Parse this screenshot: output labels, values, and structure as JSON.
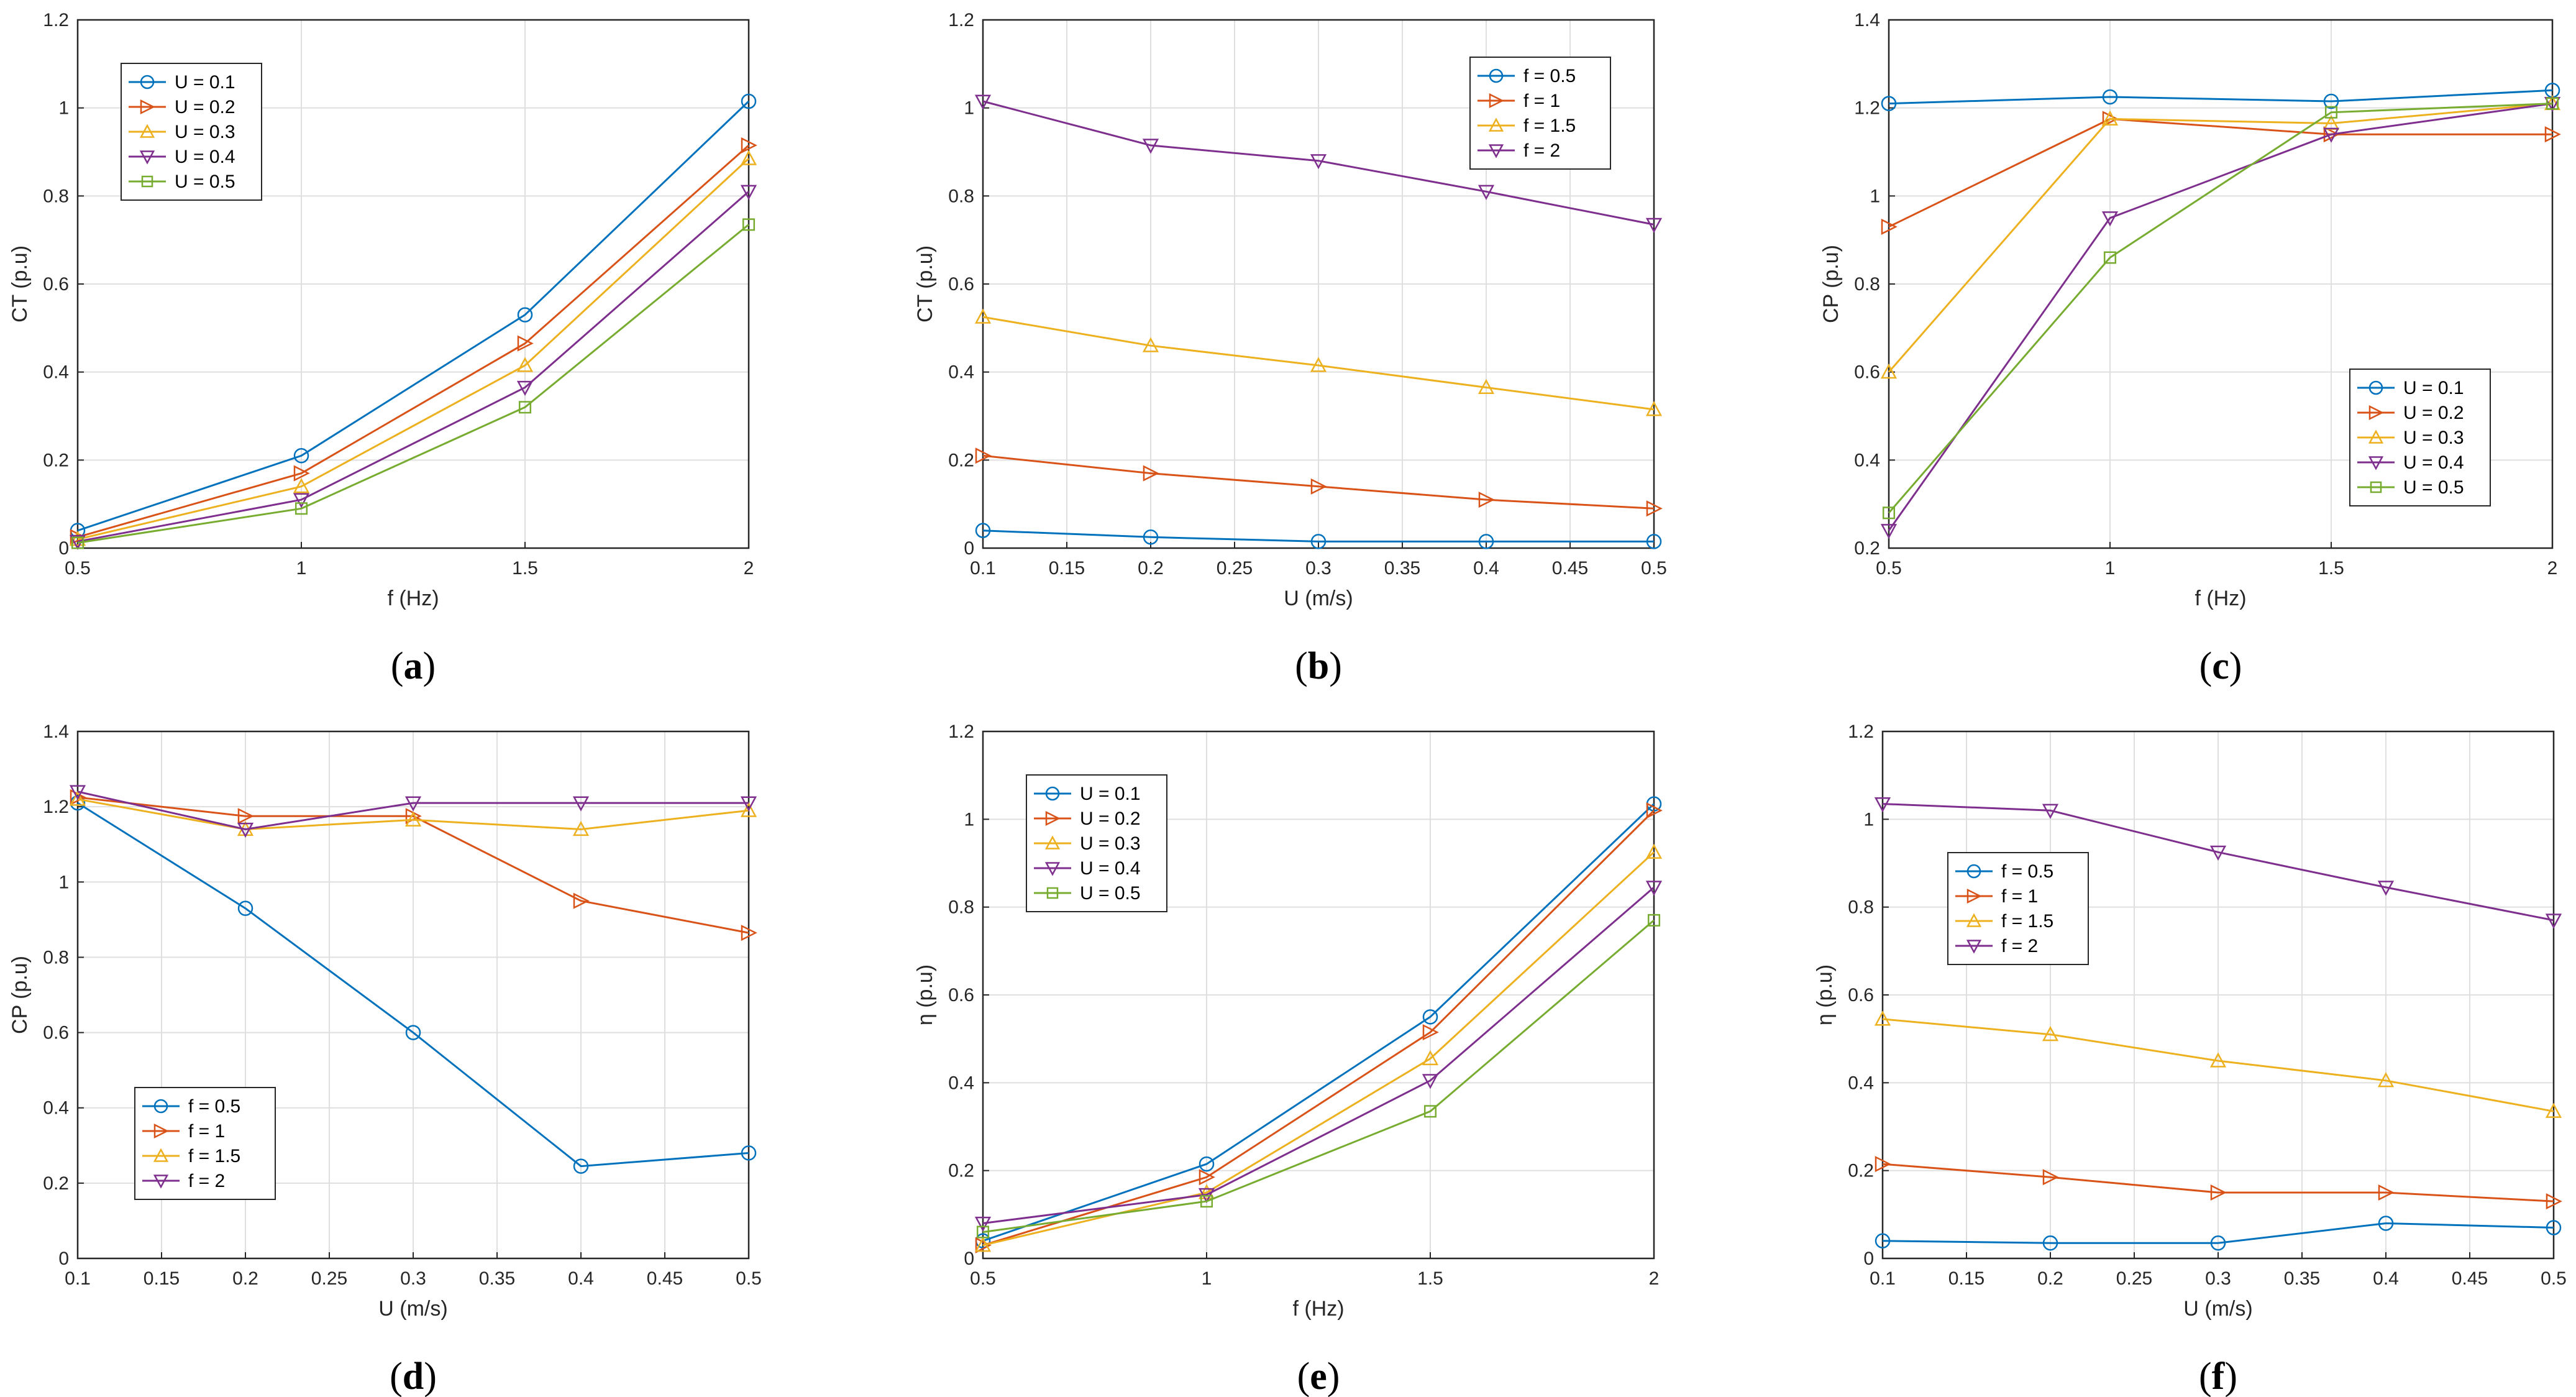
{
  "colors": {
    "series": [
      "#0072BD",
      "#D95319",
      "#EDB120",
      "#7E2F8E",
      "#77AC30"
    ],
    "grid": "#dfdfdf",
    "axis": "#262626"
  },
  "chart_data": [
    {
      "panel": "a",
      "caption_letter": "a",
      "type": "line",
      "xlabel": "f (Hz)",
      "ylabel": "CT (p.u)",
      "xlim": [
        0.5,
        2
      ],
      "ylim": [
        0,
        1.2
      ],
      "xticks": [
        "0.5",
        "1",
        "1.5",
        "2"
      ],
      "yticks": [
        "0",
        "0.2",
        "0.4",
        "0.6",
        "0.8",
        "1",
        "1.2"
      ],
      "x": [
        0.5,
        1,
        1.5,
        2
      ],
      "legend_position": "top-left",
      "series": [
        {
          "name": "U = 0.1",
          "marker": "circle",
          "values": [
            0.04,
            0.21,
            0.53,
            1.015
          ]
        },
        {
          "name": "U = 0.2",
          "marker": "triangle-right",
          "values": [
            0.025,
            0.17,
            0.465,
            0.915
          ]
        },
        {
          "name": "U = 0.3",
          "marker": "triangle-up",
          "values": [
            0.02,
            0.14,
            0.415,
            0.885
          ]
        },
        {
          "name": "U = 0.4",
          "marker": "triangle-down",
          "values": [
            0.015,
            0.11,
            0.365,
            0.81
          ]
        },
        {
          "name": "U = 0.5",
          "marker": "square",
          "values": [
            0.012,
            0.09,
            0.32,
            0.735
          ]
        }
      ]
    },
    {
      "panel": "b",
      "caption_letter": "b",
      "type": "line",
      "xlabel": "U (m/s)",
      "ylabel": "CT (p.u)",
      "xlim": [
        0.1,
        0.5
      ],
      "ylim": [
        0,
        1.2
      ],
      "xticks": [
        "0.1",
        "0.15",
        "0.2",
        "0.25",
        "0.3",
        "0.35",
        "0.4",
        "0.45",
        "0.5"
      ],
      "yticks": [
        "0",
        "0.2",
        "0.4",
        "0.6",
        "0.8",
        "1",
        "1.2"
      ],
      "x": [
        0.1,
        0.2,
        0.3,
        0.4,
        0.5
      ],
      "legend_position": "top-right",
      "series": [
        {
          "name": "f = 0.5",
          "marker": "circle",
          "values": [
            0.04,
            0.025,
            0.015,
            0.015,
            0.015
          ]
        },
        {
          "name": "f = 1",
          "marker": "triangle-right",
          "values": [
            0.21,
            0.17,
            0.14,
            0.11,
            0.09
          ]
        },
        {
          "name": "f = 1.5",
          "marker": "triangle-up",
          "values": [
            0.525,
            0.46,
            0.415,
            0.365,
            0.315
          ]
        },
        {
          "name": "f = 2",
          "marker": "triangle-down",
          "values": [
            1.015,
            0.915,
            0.88,
            0.81,
            0.735
          ]
        }
      ]
    },
    {
      "panel": "c",
      "caption_letter": "c",
      "type": "line",
      "xlabel": "f (Hz)",
      "ylabel": "CP (p.u)",
      "xlim": [
        0.5,
        2
      ],
      "ylim": [
        0.2,
        1.4
      ],
      "xticks": [
        "0.5",
        "1",
        "1.5",
        "2"
      ],
      "yticks": [
        "0.2",
        "0.4",
        "0.6",
        "0.8",
        "1",
        "1.2",
        "1.4"
      ],
      "x": [
        0.5,
        1,
        1.5,
        2
      ],
      "legend_position": "bottom-right",
      "series": [
        {
          "name": "U = 0.1",
          "marker": "circle",
          "values": [
            1.21,
            1.225,
            1.215,
            1.24
          ]
        },
        {
          "name": "U = 0.2",
          "marker": "triangle-right",
          "values": [
            0.93,
            1.175,
            1.14,
            1.14
          ]
        },
        {
          "name": "U = 0.3",
          "marker": "triangle-up",
          "values": [
            0.6,
            1.175,
            1.165,
            1.21
          ]
        },
        {
          "name": "U = 0.4",
          "marker": "triangle-down",
          "values": [
            0.24,
            0.95,
            1.14,
            1.21
          ]
        },
        {
          "name": "U = 0.5",
          "marker": "square",
          "values": [
            0.28,
            0.86,
            1.19,
            1.21
          ]
        }
      ]
    },
    {
      "panel": "d",
      "caption_letter": "d",
      "type": "line",
      "xlabel": "U (m/s)",
      "ylabel": "CP (p.u)",
      "xlim": [
        0.1,
        0.5
      ],
      "ylim": [
        0,
        1.4
      ],
      "xticks": [
        "0.1",
        "0.15",
        "0.2",
        "0.25",
        "0.3",
        "0.35",
        "0.4",
        "0.45",
        "0.5"
      ],
      "yticks": [
        "0",
        "0.2",
        "0.4",
        "0.6",
        "0.8",
        "1",
        "1.2",
        "1.4"
      ],
      "x": [
        0.1,
        0.2,
        0.3,
        0.4,
        0.5
      ],
      "legend_position": "bottom-left",
      "series": [
        {
          "name": "f = 0.5",
          "marker": "circle",
          "values": [
            1.21,
            0.93,
            0.6,
            0.245,
            0.28
          ]
        },
        {
          "name": "f = 1",
          "marker": "triangle-right",
          "values": [
            1.225,
            1.175,
            1.175,
            0.95,
            0.865
          ]
        },
        {
          "name": "f = 1.5",
          "marker": "triangle-up",
          "values": [
            1.22,
            1.14,
            1.165,
            1.14,
            1.19
          ]
        },
        {
          "name": "f = 2",
          "marker": "triangle-down",
          "values": [
            1.24,
            1.14,
            1.21,
            1.21,
            1.21
          ]
        }
      ]
    },
    {
      "panel": "e",
      "caption_letter": "e",
      "type": "line",
      "xlabel": "f (Hz)",
      "ylabel": "η (p.u)",
      "xlim": [
        0.5,
        2
      ],
      "ylim": [
        0,
        1.2
      ],
      "xticks": [
        "0.5",
        "1",
        "1.5",
        "2"
      ],
      "yticks": [
        "0",
        "0.2",
        "0.4",
        "0.6",
        "0.8",
        "1",
        "1.2"
      ],
      "x": [
        0.5,
        1,
        1.5,
        2
      ],
      "legend_position": "top-left",
      "series": [
        {
          "name": "U = 0.1",
          "marker": "circle",
          "values": [
            0.04,
            0.215,
            0.55,
            1.035
          ]
        },
        {
          "name": "U = 0.2",
          "marker": "triangle-right",
          "values": [
            0.03,
            0.185,
            0.515,
            1.02
          ]
        },
        {
          "name": "U = 0.3",
          "marker": "triangle-up",
          "values": [
            0.03,
            0.15,
            0.455,
            0.925
          ]
        },
        {
          "name": "U = 0.4",
          "marker": "triangle-down",
          "values": [
            0.08,
            0.145,
            0.405,
            0.845
          ]
        },
        {
          "name": "U = 0.5",
          "marker": "square",
          "values": [
            0.06,
            0.13,
            0.335,
            0.77
          ]
        }
      ]
    },
    {
      "panel": "f",
      "caption_letter": "f",
      "type": "line",
      "xlabel": "U (m/s)",
      "ylabel": "η (p.u)",
      "xlim": [
        0.1,
        0.5
      ],
      "ylim": [
        0,
        1.2
      ],
      "xticks": [
        "0.1",
        "0.15",
        "0.2",
        "0.25",
        "0.3",
        "0.35",
        "0.4",
        "0.45",
        "0.5"
      ],
      "yticks": [
        "0",
        "0.2",
        "0.4",
        "0.6",
        "0.8",
        "1",
        "1.2"
      ],
      "x": [
        0.1,
        0.2,
        0.3,
        0.4,
        0.5
      ],
      "legend_position": "middle-left",
      "series": [
        {
          "name": "f = 0.5",
          "marker": "circle",
          "values": [
            0.04,
            0.035,
            0.035,
            0.08,
            0.07
          ]
        },
        {
          "name": "f = 1",
          "marker": "triangle-right",
          "values": [
            0.215,
            0.185,
            0.15,
            0.15,
            0.13
          ]
        },
        {
          "name": "f = 1.5",
          "marker": "triangle-up",
          "values": [
            0.545,
            0.51,
            0.45,
            0.405,
            0.335
          ]
        },
        {
          "name": "f = 2",
          "marker": "triangle-down",
          "values": [
            1.035,
            1.02,
            0.925,
            0.845,
            0.77
          ]
        }
      ]
    }
  ]
}
